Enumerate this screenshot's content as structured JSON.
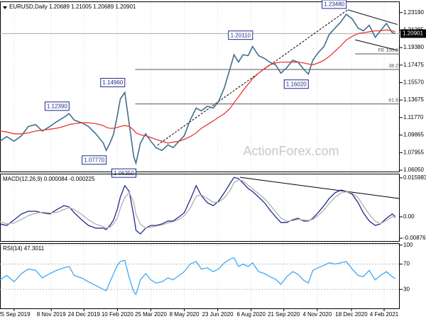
{
  "chart_data": [
    {
      "type": "line",
      "title": "EURUSD,Daily  1.20689 1.21005 1.20689 1.20901",
      "x": [
        -19,
        -10,
        0,
        10,
        19,
        29,
        38,
        48,
        57,
        67,
        74,
        81,
        91,
        100,
        110,
        120,
        124,
        129,
        134,
        139,
        143,
        149,
        155,
        161,
        164,
        170,
        177,
        184,
        191,
        199,
        207,
        214,
        222,
        229,
        237,
        245,
        252,
        260,
        268,
        275,
        283,
        291,
        296,
        302,
        308,
        315,
        321,
        329,
        337,
        344,
        352,
        359,
        367,
        375,
        382,
        390,
        396,
        402,
        409,
        417,
        424,
        432,
        440,
        447,
        455,
        463,
        470,
        478,
        486,
        493,
        501,
        509,
        513
      ],
      "xlim": [
        -19,
        519
      ],
      "ylim": [
        1.059,
        1.244
      ],
      "yticks": [
        {
          "value": 1.2319,
          "label": "1.23190"
        },
        1.21285,
        {
          "value": 1.1938,
          "label": "1.19380"
        },
        1.17475,
        {
          "value": 1.1557,
          "label": "1.15570"
        },
        1.13675,
        {
          "value": 1.1177,
          "label": "1.11770"
        },
        1.09865,
        1.07955,
        {
          "value": 1.0605,
          "label": "1.06050"
        }
      ],
      "series": [
        {
          "color": "#3f6f8e",
          "values": [
            1.092,
            1.097,
            1.092,
            1.098,
            1.108,
            1.11,
            1.103,
            1.108,
            1.113,
            1.118,
            1.122,
            1.115,
            1.112,
            1.108,
            1.1,
            1.09,
            1.082,
            1.09,
            1.1,
            1.12,
            1.138,
            1.145,
            1.11,
            1.075,
            1.068,
            1.09,
            1.1,
            1.092,
            1.085,
            1.082,
            1.088,
            1.085,
            1.092,
            1.098,
            1.115,
            1.128,
            1.125,
            1.13,
            1.128,
            1.135,
            1.15,
            1.172,
            1.186,
            1.178,
            1.186,
            1.185,
            1.195,
            1.185,
            1.182,
            1.178,
            1.175,
            1.166,
            1.172,
            1.18,
            1.178,
            1.17,
            1.165,
            1.18,
            1.188,
            1.195,
            1.208,
            1.215,
            1.222,
            1.23,
            1.225,
            1.215,
            1.212,
            1.218,
            1.205,
            1.212,
            1.22,
            1.21,
            1.20901
          ]
        },
        {
          "color": "#e53935",
          "values": [
            1.103,
            1.102,
            1.1,
            1.1,
            1.101,
            1.103,
            1.104,
            1.105,
            1.106,
            1.108,
            1.11,
            1.111,
            1.112,
            1.112,
            1.111,
            1.109,
            1.107,
            1.106,
            1.106,
            1.107,
            1.108,
            1.109,
            1.108,
            1.104,
            1.101,
            1.099,
            1.098,
            1.096,
            1.094,
            1.092,
            1.09,
            1.091,
            1.092,
            1.094,
            1.097,
            1.101,
            1.106,
            1.11,
            1.114,
            1.118,
            1.122,
            1.128,
            1.134,
            1.14,
            1.147,
            1.154,
            1.16,
            1.166,
            1.171,
            1.175,
            1.177,
            1.178,
            1.178,
            1.178,
            1.178,
            1.177,
            1.176,
            1.175,
            1.177,
            1.18,
            1.184,
            1.19,
            1.196,
            1.202,
            1.206,
            1.209,
            1.21,
            1.211,
            1.212,
            1.212,
            1.213,
            1.212,
            1.211
          ]
        }
      ],
      "current_price": 1.20901,
      "price_labels": [
        {
          "value": 1.2348,
          "label": "1.23480",
          "x": 447,
          "kind": "high"
        },
        {
          "value": 1.2011,
          "label": "1.20110",
          "x": 321,
          "kind": "high"
        },
        {
          "value": 1.1496,
          "label": "1.14960",
          "x": 149,
          "kind": "high"
        },
        {
          "value": 1.1239,
          "label": "1.12390",
          "x": 74,
          "kind": "high"
        },
        {
          "value": 1.0777,
          "label": "1.07770",
          "x": 124,
          "kind": "low"
        },
        {
          "value": 1.0635,
          "label": "1.06350",
          "x": 164,
          "kind": "low"
        },
        {
          "value": 1.1602,
          "label": "1.16020",
          "x": 396,
          "kind": "low"
        }
      ],
      "levels": [
        {
          "label": "FE 100.0",
          "value": 1.187,
          "x": 459
        },
        {
          "label": "38.2",
          "value": 1.17,
          "x": 163
        },
        {
          "label": "61.8",
          "value": 1.1325,
          "x": 163
        }
      ],
      "trendlines": [
        {
          "x": [
            193,
            449
          ],
          "y": [
            1.0879,
            1.2349
          ],
          "style": "dashed"
        },
        {
          "x": [
            449,
            516
          ],
          "y": [
            1.2349,
            1.2189
          ],
          "style": "solid"
        },
        {
          "x": [
            459,
            516
          ],
          "y": [
            1.2022,
            1.1908
          ],
          "style": "solid"
        }
      ],
      "watermark": "ActionForex.com"
    },
    {
      "type": "line",
      "title": "MACD(12,26,9) 0.000084 -0.000225",
      "ylim": [
        -0.0099,
        0.0177
      ],
      "yticks": [
        0.015983,
        {
          "value": 0,
          "label": "0.00"
        },
        -0.008762
      ],
      "series": [
        {
          "color": "#1f2a8a",
          "values": [
            -0.0029,
            -0.0035,
            -0.0012,
            0.0012,
            0.0023,
            0.0023,
            0.0017,
            0.0012,
            0.0029,
            0.0046,
            0.0041,
            0.0017,
            -0.0012,
            -0.0035,
            -0.0046,
            -0.0046,
            -0.0052,
            -0.0035,
            -0.0012,
            0.0032,
            0.0081,
            0.0128,
            0.0104,
            0.0003,
            -0.0055,
            -0.007,
            -0.0046,
            -0.0035,
            -0.0035,
            -0.0029,
            -0.0017,
            -0.0017,
            0.0,
            0.0017,
            0.007,
            0.0128,
            0.0087,
            0.0058,
            0.0046,
            0.0064,
            0.0099,
            0.0139,
            0.0162,
            0.0157,
            0.0139,
            0.0116,
            0.0104,
            0.0081,
            0.0058,
            0.0029,
            0.0,
            -0.0023,
            -0.0023,
            -0.0012,
            -0.0006,
            -0.0017,
            -0.0017,
            -0.0006,
            0.0017,
            0.0046,
            0.0075,
            0.0099,
            0.011,
            0.0104,
            0.0093,
            0.0058,
            0.0017,
            -0.0017,
            -0.0035,
            -0.0029,
            -0.0006,
            0.0012,
            8.4e-05
          ]
        },
        {
          "color": "#b0b0b0",
          "values": [
            -0.002,
            -0.0028,
            -0.0025,
            -0.001,
            0.0005,
            0.0015,
            0.0019,
            0.0016,
            0.0018,
            0.003,
            0.0038,
            0.003,
            0.001,
            -0.0012,
            -0.003,
            -0.004,
            -0.0046,
            -0.0042,
            -0.0028,
            -0.0005,
            0.0035,
            0.008,
            0.01,
            0.006,
            0.001,
            -0.003,
            -0.0045,
            -0.0042,
            -0.0038,
            -0.0033,
            -0.0025,
            -0.002,
            -0.001,
            0.0005,
            0.0035,
            0.0085,
            0.009,
            0.0075,
            0.006,
            0.006,
            0.0078,
            0.011,
            0.014,
            0.0152,
            0.0148,
            0.013,
            0.0115,
            0.0095,
            0.0075,
            0.005,
            0.0022,
            -0.0005,
            -0.0018,
            -0.0016,
            -0.001,
            -0.0013,
            -0.0015,
            -0.001,
            0.0005,
            0.0028,
            0.0055,
            0.008,
            0.0098,
            0.0103,
            0.0098,
            0.0078,
            0.0045,
            0.001,
            -0.0018,
            -0.0028,
            -0.0015,
            0.0,
            -0.000225
          ]
        }
      ],
      "trendlines": [
        {
          "x": [
            304,
            519
          ],
          "y": [
            0.0162,
            0.0075
          ],
          "style": "solid"
        }
      ]
    },
    {
      "type": "line",
      "title": "RSI(14) 47.3011",
      "ylim": [
        0,
        103
      ],
      "yticks": [
        100,
        70,
        30
      ],
      "xticks": [
        {
          "value": 0,
          "label": "25 Sep 2019"
        },
        {
          "value": 50,
          "label": "8 Nov 2019"
        },
        {
          "value": 94,
          "label": "24 Dec 2019"
        },
        {
          "value": 139,
          "label": "10 Feb 2020"
        },
        {
          "value": 184,
          "label": "25 Mar 2020"
        },
        {
          "value": 229,
          "label": "8 May 2020"
        },
        {
          "value": 274,
          "label": "23 Jun 2020"
        },
        {
          "value": 319,
          "label": "6 Aug 2020"
        },
        {
          "value": 363,
          "label": "21 Sep 2020"
        },
        {
          "value": 408,
          "label": "4 Nov 2020"
        },
        {
          "value": 454,
          "label": "18 Dec 2020"
        },
        {
          "value": 498,
          "label": "4 Feb 2021"
        }
      ],
      "series": [
        {
          "color": "#3fa9f5",
          "values": [
            45,
            52,
            42,
            55,
            62,
            60,
            48,
            55,
            60,
            64,
            66,
            52,
            48,
            42,
            36,
            30,
            28,
            42,
            55,
            68,
            74,
            76,
            48,
            26,
            22,
            45,
            55,
            45,
            40,
            42,
            48,
            45,
            52,
            58,
            70,
            74,
            62,
            64,
            58,
            62,
            72,
            78,
            80,
            66,
            70,
            66,
            72,
            58,
            55,
            50,
            46,
            38,
            50,
            58,
            54,
            44,
            40,
            60,
            64,
            68,
            72,
            70,
            72,
            74,
            62,
            52,
            50,
            60,
            45,
            52,
            58,
            50,
            47.3011
          ]
        }
      ]
    }
  ]
}
